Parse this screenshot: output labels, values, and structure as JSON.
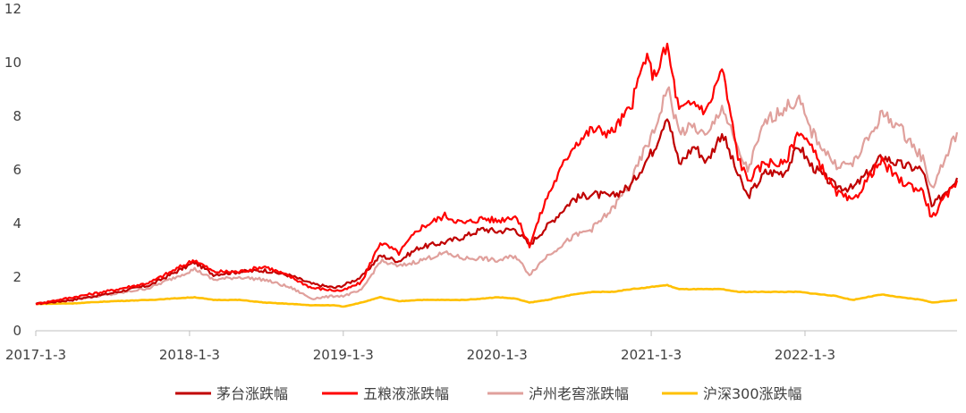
{
  "chart_data": {
    "type": "line",
    "title": "",
    "xlabel": "",
    "ylabel": "",
    "ylim": [
      0,
      12
    ],
    "yticks": [
      "0",
      "2",
      "4",
      "6",
      "8",
      "10",
      "12"
    ],
    "xticks": [
      "2017-1-3",
      "2018-1-3",
      "2019-1-3",
      "2020-1-3",
      "2021-1-3",
      "2022-1-3"
    ],
    "xlim": [
      "2017-01-03",
      "2022-12-30"
    ],
    "grid": false,
    "legend_position": "bottom",
    "series": [
      {
        "name": "茅台涨跌幅",
        "color": "#C00000",
        "points": [
          [
            "2017-01-03",
            1.0
          ],
          [
            "2017-04-01",
            1.15
          ],
          [
            "2017-07-01",
            1.4
          ],
          [
            "2017-10-01",
            1.7
          ],
          [
            "2018-01-15",
            2.55
          ],
          [
            "2018-03-01",
            2.1
          ],
          [
            "2018-05-01",
            2.2
          ],
          [
            "2018-07-01",
            2.25
          ],
          [
            "2018-09-01",
            2.05
          ],
          [
            "2018-10-20",
            1.75
          ],
          [
            "2018-12-15",
            1.6
          ],
          [
            "2019-01-03",
            1.7
          ],
          [
            "2019-02-15",
            2.0
          ],
          [
            "2019-04-01",
            2.8
          ],
          [
            "2019-05-15",
            2.6
          ],
          [
            "2019-07-01",
            3.1
          ],
          [
            "2019-09-01",
            3.3
          ],
          [
            "2019-10-15",
            3.5
          ],
          [
            "2019-12-01",
            3.8
          ],
          [
            "2020-01-03",
            3.7
          ],
          [
            "2020-02-15",
            3.8
          ],
          [
            "2020-03-20",
            3.2
          ],
          [
            "2020-05-01",
            3.9
          ],
          [
            "2020-07-01",
            4.9
          ],
          [
            "2020-08-15",
            5.1
          ],
          [
            "2020-10-01",
            5.0
          ],
          [
            "2020-11-15",
            5.4
          ],
          [
            "2020-12-20",
            6.3
          ],
          [
            "2021-01-10",
            6.8
          ],
          [
            "2021-02-10",
            8.1
          ],
          [
            "2021-03-10",
            6.2
          ],
          [
            "2021-04-15",
            6.9
          ],
          [
            "2021-05-15",
            6.3
          ],
          [
            "2021-06-20",
            7.4
          ],
          [
            "2021-07-28",
            5.8
          ],
          [
            "2021-08-20",
            5.0
          ],
          [
            "2021-10-01",
            5.9
          ],
          [
            "2021-11-15",
            5.9
          ],
          [
            "2021-12-20",
            6.9
          ],
          [
            "2022-01-15",
            6.2
          ],
          [
            "2022-03-15",
            5.4
          ],
          [
            "2022-04-26",
            5.3
          ],
          [
            "2022-06-15",
            6.1
          ],
          [
            "2022-07-05",
            6.5
          ],
          [
            "2022-08-15",
            6.2
          ],
          [
            "2022-10-10",
            6.0
          ],
          [
            "2022-10-31",
            4.6
          ],
          [
            "2022-12-30",
            5.7
          ]
        ]
      },
      {
        "name": "五粮液涨跌幅",
        "color": "#FF0000",
        "points": [
          [
            "2017-01-03",
            1.0
          ],
          [
            "2017-04-01",
            1.25
          ],
          [
            "2017-07-01",
            1.5
          ],
          [
            "2017-10-01",
            1.8
          ],
          [
            "2018-01-15",
            2.65
          ],
          [
            "2018-03-01",
            2.2
          ],
          [
            "2018-05-01",
            2.2
          ],
          [
            "2018-07-01",
            2.4
          ],
          [
            "2018-09-01",
            2.0
          ],
          [
            "2018-10-20",
            1.6
          ],
          [
            "2018-12-15",
            1.5
          ],
          [
            "2019-01-03",
            1.5
          ],
          [
            "2019-02-15",
            1.8
          ],
          [
            "2019-04-01",
            3.3
          ],
          [
            "2019-05-15",
            2.9
          ],
          [
            "2019-07-01",
            3.8
          ],
          [
            "2019-09-01",
            4.3
          ],
          [
            "2019-10-15",
            4.0
          ],
          [
            "2019-12-01",
            4.2
          ],
          [
            "2020-01-03",
            4.1
          ],
          [
            "2020-02-15",
            4.3
          ],
          [
            "2020-03-20",
            3.2
          ],
          [
            "2020-05-01",
            5.0
          ],
          [
            "2020-07-01",
            6.9
          ],
          [
            "2020-08-15",
            7.5
          ],
          [
            "2020-10-01",
            7.4
          ],
          [
            "2020-11-15",
            8.3
          ],
          [
            "2020-12-20",
            10.2
          ],
          [
            "2021-01-10",
            9.5
          ],
          [
            "2021-02-10",
            10.6
          ],
          [
            "2021-03-10",
            8.2
          ],
          [
            "2021-04-15",
            8.5
          ],
          [
            "2021-05-15",
            8.2
          ],
          [
            "2021-06-20",
            9.8
          ],
          [
            "2021-07-28",
            6.5
          ],
          [
            "2021-08-20",
            5.6
          ],
          [
            "2021-10-01",
            6.3
          ],
          [
            "2021-11-15",
            6.2
          ],
          [
            "2021-12-20",
            7.5
          ],
          [
            "2022-01-15",
            6.9
          ],
          [
            "2022-03-15",
            5.2
          ],
          [
            "2022-04-26",
            4.8
          ],
          [
            "2022-06-15",
            6.0
          ],
          [
            "2022-07-05",
            6.3
          ],
          [
            "2022-08-15",
            5.6
          ],
          [
            "2022-10-10",
            5.2
          ],
          [
            "2022-10-31",
            4.2
          ],
          [
            "2022-12-30",
            5.6
          ]
        ]
      },
      {
        "name": "泸州老窖涨跌幅",
        "color": "#E0A09C",
        "points": [
          [
            "2017-01-03",
            1.0
          ],
          [
            "2017-04-01",
            1.2
          ],
          [
            "2017-07-01",
            1.35
          ],
          [
            "2017-10-01",
            1.6
          ],
          [
            "2018-01-15",
            2.3
          ],
          [
            "2018-03-01",
            1.9
          ],
          [
            "2018-05-01",
            2.0
          ],
          [
            "2018-07-01",
            1.9
          ],
          [
            "2018-09-01",
            1.6
          ],
          [
            "2018-10-20",
            1.2
          ],
          [
            "2018-12-15",
            1.3
          ],
          [
            "2019-01-03",
            1.3
          ],
          [
            "2019-02-15",
            1.5
          ],
          [
            "2019-04-01",
            2.6
          ],
          [
            "2019-05-15",
            2.4
          ],
          [
            "2019-07-01",
            2.6
          ],
          [
            "2019-09-01",
            2.9
          ],
          [
            "2019-10-15",
            2.7
          ],
          [
            "2019-12-01",
            2.7
          ],
          [
            "2020-01-03",
            2.6
          ],
          [
            "2020-02-15",
            2.8
          ],
          [
            "2020-03-20",
            2.1
          ],
          [
            "2020-05-01",
            2.8
          ],
          [
            "2020-07-01",
            3.5
          ],
          [
            "2020-08-15",
            3.8
          ],
          [
            "2020-10-01",
            4.5
          ],
          [
            "2020-11-15",
            5.5
          ],
          [
            "2020-12-20",
            6.8
          ],
          [
            "2021-01-10",
            7.4
          ],
          [
            "2021-02-10",
            9.1
          ],
          [
            "2021-03-10",
            7.4
          ],
          [
            "2021-04-15",
            7.6
          ],
          [
            "2021-05-15",
            7.2
          ],
          [
            "2021-06-20",
            8.4
          ],
          [
            "2021-07-28",
            6.7
          ],
          [
            "2021-08-20",
            6.0
          ],
          [
            "2021-10-01",
            7.8
          ],
          [
            "2021-11-15",
            8.3
          ],
          [
            "2021-12-20",
            8.6
          ],
          [
            "2022-01-15",
            7.5
          ],
          [
            "2022-03-15",
            6.2
          ],
          [
            "2022-04-26",
            6.2
          ],
          [
            "2022-06-15",
            7.5
          ],
          [
            "2022-07-05",
            8.1
          ],
          [
            "2022-08-15",
            7.6
          ],
          [
            "2022-10-10",
            6.4
          ],
          [
            "2022-10-31",
            5.3
          ],
          [
            "2022-12-30",
            7.4
          ]
        ]
      },
      {
        "name": "沪深300涨跌幅",
        "color": "#FFC000",
        "points": [
          [
            "2017-01-03",
            1.0
          ],
          [
            "2017-04-01",
            1.02
          ],
          [
            "2017-07-01",
            1.1
          ],
          [
            "2017-10-01",
            1.15
          ],
          [
            "2018-01-15",
            1.25
          ],
          [
            "2018-03-01",
            1.15
          ],
          [
            "2018-05-01",
            1.15
          ],
          [
            "2018-07-01",
            1.05
          ],
          [
            "2018-09-01",
            1.0
          ],
          [
            "2018-10-20",
            0.95
          ],
          [
            "2018-12-15",
            0.95
          ],
          [
            "2019-01-03",
            0.9
          ],
          [
            "2019-02-15",
            1.05
          ],
          [
            "2019-04-01",
            1.25
          ],
          [
            "2019-05-15",
            1.1
          ],
          [
            "2019-07-01",
            1.15
          ],
          [
            "2019-09-01",
            1.15
          ],
          [
            "2019-10-15",
            1.15
          ],
          [
            "2019-12-01",
            1.2
          ],
          [
            "2020-01-03",
            1.25
          ],
          [
            "2020-02-15",
            1.2
          ],
          [
            "2020-03-20",
            1.05
          ],
          [
            "2020-05-01",
            1.15
          ],
          [
            "2020-07-01",
            1.35
          ],
          [
            "2020-08-15",
            1.45
          ],
          [
            "2020-10-01",
            1.45
          ],
          [
            "2020-11-15",
            1.55
          ],
          [
            "2020-12-20",
            1.6
          ],
          [
            "2021-01-10",
            1.65
          ],
          [
            "2021-02-10",
            1.7
          ],
          [
            "2021-03-10",
            1.55
          ],
          [
            "2021-04-15",
            1.55
          ],
          [
            "2021-05-15",
            1.55
          ],
          [
            "2021-06-20",
            1.55
          ],
          [
            "2021-07-28",
            1.45
          ],
          [
            "2021-08-20",
            1.45
          ],
          [
            "2021-10-01",
            1.45
          ],
          [
            "2021-11-15",
            1.45
          ],
          [
            "2021-12-20",
            1.45
          ],
          [
            "2022-01-15",
            1.4
          ],
          [
            "2022-03-15",
            1.3
          ],
          [
            "2022-04-26",
            1.15
          ],
          [
            "2022-06-15",
            1.3
          ],
          [
            "2022-07-05",
            1.35
          ],
          [
            "2022-08-15",
            1.25
          ],
          [
            "2022-10-10",
            1.15
          ],
          [
            "2022-10-31",
            1.05
          ],
          [
            "2022-12-30",
            1.15
          ]
        ]
      }
    ],
    "annotations": []
  }
}
